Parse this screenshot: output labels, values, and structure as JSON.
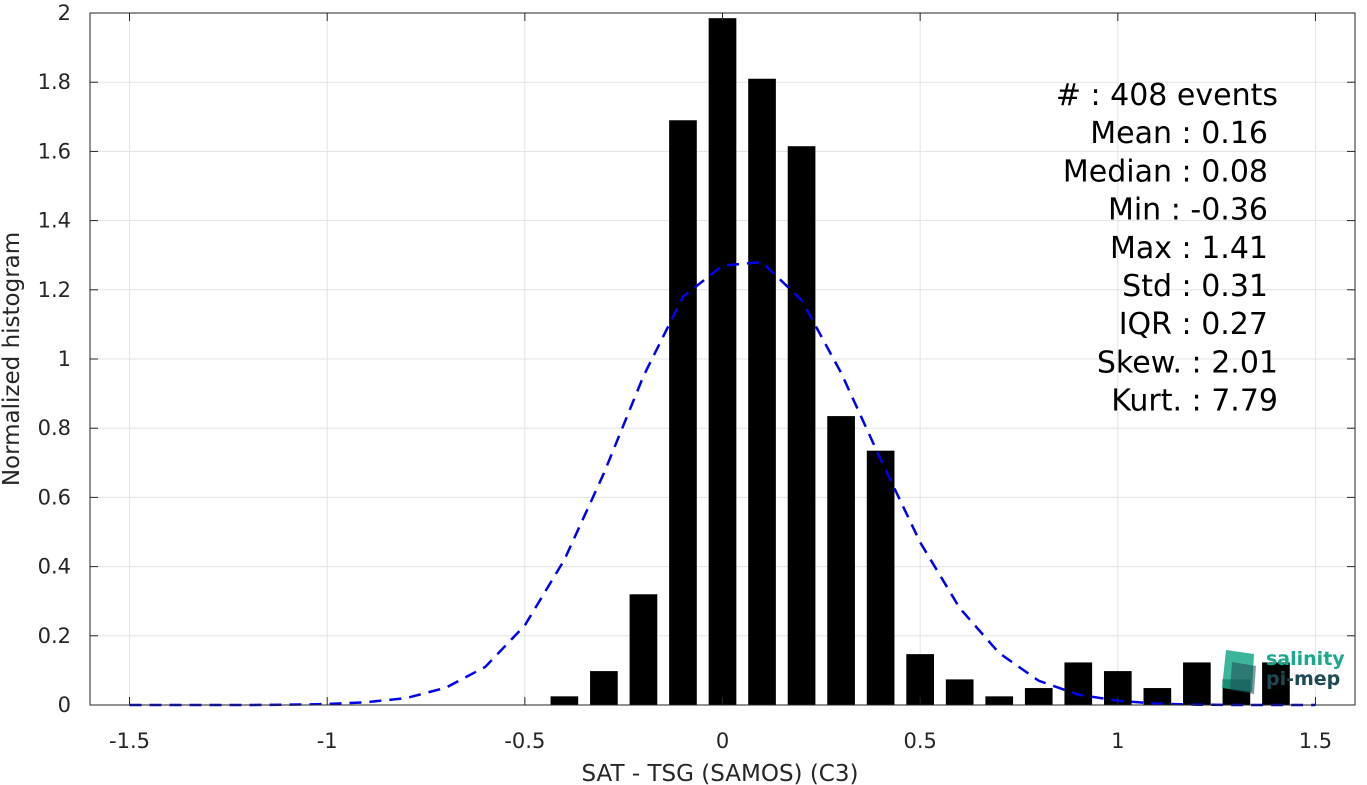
{
  "chart_data": {
    "type": "bar",
    "xlabel": "SAT - TSG (SAMOS) (C3)",
    "ylabel": "Normalized histogram",
    "xlim": [
      -1.6,
      1.6
    ],
    "ylim": [
      0,
      2
    ],
    "xticks": [
      -1.5,
      -1,
      -0.5,
      0,
      0.5,
      1,
      1.5
    ],
    "xtick_labels": [
      "-1.5",
      "-1",
      "-0.5",
      "0",
      "0.5",
      "1",
      "1.5"
    ],
    "yticks": [
      0,
      0.2,
      0.4,
      0.6,
      0.8,
      1,
      1.2,
      1.4,
      1.6,
      1.8,
      2
    ],
    "ytick_labels": [
      "0",
      "0.2",
      "0.4",
      "0.6",
      "0.8",
      "1",
      "1.2",
      "1.4",
      "1.6",
      "1.8",
      "2"
    ],
    "grid": true,
    "bar_color": "#000000",
    "bar_width": 0.07,
    "bars": {
      "x": [
        -0.4,
        -0.3,
        -0.2,
        -0.1,
        0.0,
        0.1,
        0.2,
        0.3,
        0.4,
        0.5,
        0.6,
        0.7,
        0.8,
        0.9,
        1.0,
        1.1,
        1.2,
        1.3,
        1.4
      ],
      "values": [
        0.025,
        0.098,
        0.32,
        1.69,
        1.985,
        1.81,
        1.615,
        0.835,
        0.735,
        0.147,
        0.074,
        0.025,
        0.049,
        0.123,
        0.098,
        0.049,
        0.123,
        0.074,
        0.123
      ]
    },
    "fit_curve": {
      "style": "dashed",
      "color": "#0000ee",
      "x": [
        -1.5,
        -1.4,
        -1.3,
        -1.2,
        -1.1,
        -1.0,
        -0.9,
        -0.8,
        -0.7,
        -0.6,
        -0.5,
        -0.4,
        -0.3,
        -0.2,
        -0.1,
        0.0,
        0.1,
        0.2,
        0.3,
        0.4,
        0.5,
        0.6,
        0.7,
        0.8,
        0.9,
        1.0,
        1.1,
        1.2,
        1.3,
        1.4,
        1.5
      ],
      "y": [
        0.0,
        0.0,
        0.0,
        0.0,
        0.001,
        0.003,
        0.008,
        0.02,
        0.05,
        0.11,
        0.23,
        0.42,
        0.67,
        0.95,
        1.18,
        1.27,
        1.28,
        1.17,
        0.96,
        0.71,
        0.47,
        0.28,
        0.15,
        0.07,
        0.03,
        0.012,
        0.004,
        0.001,
        0.0,
        0.0,
        0.0
      ]
    },
    "stats": [
      "#  : 408 events",
      "Mean : 0.16",
      "Median : 0.08",
      "Min : -0.36",
      "Max : 1.41",
      "Std : 0.31",
      "IQR : 0.27",
      "Skew. : 2.01",
      "Kurt. : 7.79"
    ]
  },
  "logo": {
    "line1": "salinity",
    "line2": "pi-mep",
    "colors": {
      "teal": "#1aa88c",
      "dark": "#1d4a52"
    }
  }
}
